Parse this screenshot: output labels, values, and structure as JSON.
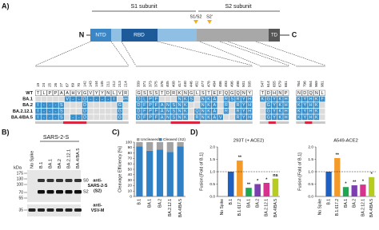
{
  "panel_labels": [
    "A)",
    "B)",
    "C)",
    "D)"
  ],
  "diagram": {
    "s1": "S1 subunit",
    "s2": "S2 subunit",
    "n": "N",
    "c": "C",
    "ntd": "NTD",
    "rbd": "RBD",
    "td": "TD",
    "cleavage_sites": [
      "S1/S2",
      "S2'"
    ]
  },
  "alignment": {
    "groups": [
      [
        19,
        24,
        25,
        26,
        27,
        67,
        69,
        70,
        142,
        143,
        144,
        145,
        211,
        212,
        213,
        214
      ],
      [
        339,
        371,
        373,
        375,
        376,
        405,
        408,
        417,
        440,
        446,
        452,
        477,
        478,
        484,
        486,
        493,
        496,
        498,
        501,
        505
      ],
      [
        547,
        614,
        655,
        679,
        681
      ],
      [
        764,
        796,
        954,
        969,
        981
      ]
    ],
    "rows": [
      {
        "name": "WT",
        "residues": [
          [
            "T",
            "L",
            "P",
            "P",
            "A",
            "A",
            "H",
            "V",
            "G",
            "V",
            "Y",
            "Y",
            "N",
            "L",
            "V",
            "R"
          ],
          [
            "G",
            "S",
            "S",
            "S",
            "T",
            "D",
            "R",
            "K",
            "N",
            "G",
            "L",
            "S",
            "T",
            "E",
            "F",
            "Q",
            "G",
            "Q",
            "N",
            "Y"
          ],
          [
            "T",
            "D",
            "H",
            "N",
            "P"
          ],
          [
            "N",
            "D",
            "Q",
            "N",
            "L"
          ]
        ]
      },
      {
        "name": "BA.1",
        "residues": [
          [
            null,
            null,
            null,
            null,
            null,
            "V",
            "-",
            "-",
            "D",
            "-",
            "-",
            "-",
            "-",
            "I",
            null,
            "EPE"
          ],
          [
            "D",
            "L",
            "P",
            "F",
            null,
            null,
            null,
            "N",
            "K",
            "S",
            null,
            "N",
            "K",
            "A",
            null,
            "R",
            "S",
            "R",
            "Y",
            "H"
          ],
          [
            "K",
            "G",
            "Y",
            "K",
            "H"
          ],
          [
            "K",
            "Y",
            "H",
            "K",
            "F"
          ]
        ]
      },
      {
        "name": "BA.2",
        "residues": [
          [
            "I",
            "-",
            "-",
            "-",
            "S",
            null,
            null,
            null,
            "D",
            null,
            null,
            null,
            null,
            null,
            "G",
            null
          ],
          [
            "D",
            "F",
            "P",
            "F",
            "A",
            "N",
            "S",
            "N",
            "K",
            null,
            null,
            "N",
            "K",
            "A",
            null,
            "R",
            null,
            "R",
            "Y",
            "H"
          ],
          [
            null,
            "G",
            "Y",
            "K",
            "H"
          ],
          [
            "K",
            "Y",
            "H",
            "K",
            null
          ]
        ]
      },
      {
        "name": "BA.2.12.1",
        "residues": [
          [
            "I",
            "-",
            "-",
            "-",
            "S",
            null,
            null,
            null,
            "D",
            null,
            null,
            null,
            null,
            null,
            "G",
            null
          ],
          [
            "D",
            "F",
            "P",
            "F",
            "A",
            "N",
            "S",
            "N",
            "K",
            null,
            "Q",
            "N",
            "K",
            "A",
            null,
            "R",
            null,
            "R",
            "Y",
            "H"
          ],
          [
            null,
            "G",
            "Y",
            "K",
            "H"
          ],
          [
            "K",
            "Y",
            "H",
            "K",
            null
          ]
        ]
      },
      {
        "name": "BA.4/BA.5",
        "residues": [
          [
            "I",
            "-",
            "-",
            "-",
            "S",
            null,
            "-",
            "-",
            "D",
            null,
            null,
            null,
            null,
            null,
            "G",
            null
          ],
          [
            "D",
            "F",
            "P",
            "F",
            "A",
            "N",
            "S",
            "N",
            "K",
            null,
            "R",
            "N",
            "K",
            "A",
            "V",
            null,
            null,
            "R",
            "Y",
            "H"
          ],
          [
            null,
            "G",
            "Y",
            "K",
            "H"
          ],
          [
            "K",
            "Y",
            "H",
            "K",
            null
          ]
        ]
      }
    ]
  },
  "blot": {
    "title": "SARS-2-S",
    "lanes": [
      "No Spike",
      "B.1",
      "BA.1",
      "BA.2",
      "BA.2.12.1",
      "BA.4/BA.5"
    ],
    "unit": "kDa",
    "markers": [
      175,
      130,
      100,
      70,
      55,
      35
    ],
    "bands": [
      "S0",
      "S2"
    ],
    "antibodies": [
      [
        "anti-",
        "SARS-2-S",
        "(S2)"
      ],
      [
        "anti-",
        "VSV-M"
      ]
    ]
  },
  "chart_data": [
    {
      "type": "stacked_bar",
      "ylabel": "Cleavage Efficiency [%]",
      "categories": [
        "B.1",
        "BA.1",
        "BA.2",
        "BA.2.12.1",
        "BA.4/BA.5"
      ],
      "series": [
        {
          "name": "Uncleaved",
          "color": "#a3a3a3",
          "values": [
            8,
            16,
            14,
            18,
            8
          ]
        },
        {
          "name": "Cleaved (S2)",
          "color": "#2f80c4",
          "values": [
            92,
            84,
            86,
            82,
            92
          ]
        }
      ],
      "ylim": [
        0,
        100
      ],
      "yticks": [
        0,
        10,
        20,
        30,
        40,
        50,
        60,
        70,
        80,
        90,
        100
      ]
    },
    {
      "type": "bar",
      "title": "293T (+ ACE2)",
      "ylabel": "Fusion [Fold of B.1]",
      "categories": [
        "No Spike",
        "B.1",
        "B.1.617.2",
        "BA.1",
        "BA.2",
        "BA.2.12.1",
        "BA.4/BA.5"
      ],
      "values": [
        0.02,
        1,
        1.45,
        0.35,
        0.5,
        0.55,
        0.72
      ],
      "colors": [
        "#9e9e9e",
        "#1f5fbf",
        "#f39a2b",
        "#1fa84f",
        "#7b3fb0",
        "#d6338f",
        "#b8cc1f"
      ],
      "significance": [
        null,
        null,
        "**",
        "**",
        "*",
        "*",
        "ns"
      ],
      "ylim": [
        0,
        2
      ],
      "yticks": [
        {
          "value": 0,
          "label": "0.0"
        },
        0.5,
        {
          "value": 1,
          "label": "1.0"
        },
        1.5,
        {
          "value": 2,
          "label": "2.0"
        }
      ],
      "hline": 1
    },
    {
      "type": "bar",
      "title": "A549-ACE2",
      "ylabel": "Fusion [Fold of B.1]",
      "categories": [
        "No Spike",
        "B.1",
        "B.1.617.2",
        "BA.1",
        "BA.2",
        "BA.2.12.1",
        "BA.4/BA.5"
      ],
      "values": [
        0.02,
        1,
        1.55,
        0.38,
        0.45,
        0.48,
        0.78
      ],
      "colors": [
        "#9e9e9e",
        "#1f5fbf",
        "#f39a2b",
        "#1fa84f",
        "#7b3fb0",
        "#d6338f",
        "#b8cc1f"
      ],
      "significance": [
        null,
        null,
        "**",
        "*",
        "**",
        "*",
        "*"
      ],
      "ylim": [
        0,
        2
      ],
      "yticks": [
        {
          "value": 0,
          "label": "0.0"
        },
        0.5,
        {
          "value": 1,
          "label": "1.0"
        },
        1.5,
        {
          "value": 2,
          "label": "2.0"
        }
      ],
      "hline": 1
    }
  ]
}
